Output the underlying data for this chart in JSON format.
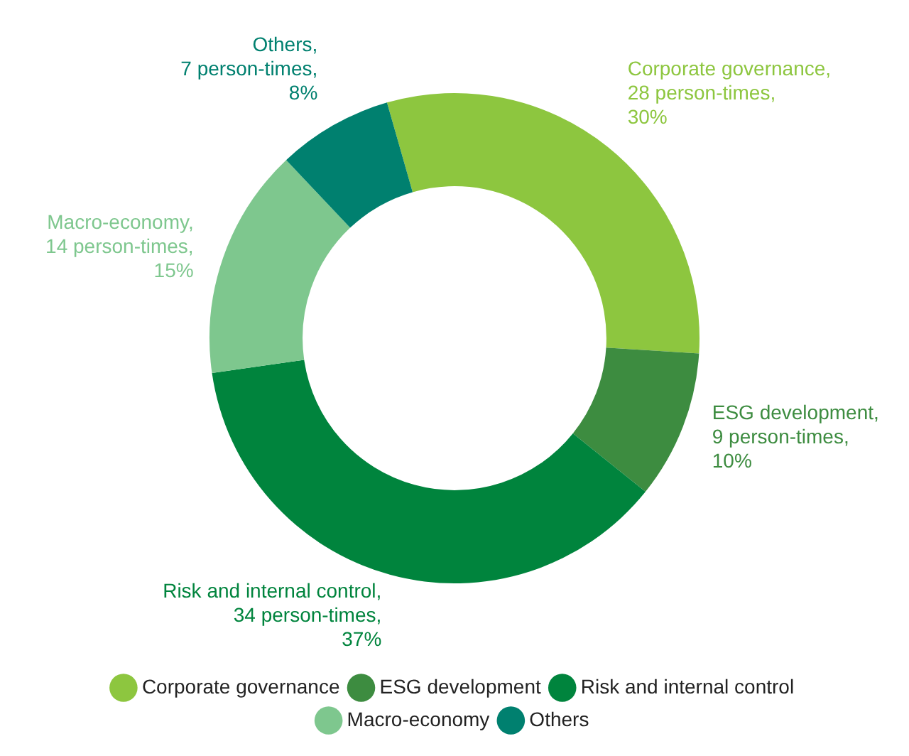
{
  "chart_data": {
    "type": "donut",
    "categories": [
      "Corporate governance",
      "ESG development",
      "Risk and internal control",
      "Macro-economy",
      "Others"
    ],
    "values": [
      28,
      9,
      34,
      14,
      7
    ],
    "colors": [
      "#8dc63f",
      "#3d8c40",
      "#00843d",
      "#7ec78e",
      "#00806f"
    ],
    "value_labels": [
      "Corporate governance, 28 person-times, 30%",
      "ESG development, 9 person-times, 10%",
      "Risk and internal control, 34 person-times, 37%",
      "Macro-economy, 14 person-times, 15%",
      "Others, 7 person-times, 8%"
    ],
    "legend": "bottom"
  }
}
